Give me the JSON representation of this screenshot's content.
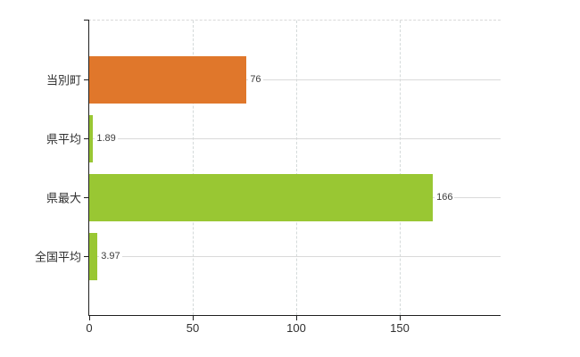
{
  "chart_data": {
    "type": "bar",
    "orientation": "horizontal",
    "title": "",
    "xlabel": "",
    "ylabel": "",
    "categories": [
      "当別町",
      "県平均",
      "県最大",
      "全国平均"
    ],
    "values": [
      76,
      1.89,
      166,
      3.97
    ],
    "value_labels": [
      "76",
      "1.89",
      "166",
      "3.97"
    ],
    "bar_colors": [
      "#e0772b",
      "#99c733",
      "#99c733",
      "#99c733"
    ],
    "x_ticks": [
      0,
      50,
      100,
      150
    ],
    "x_tick_labels": [
      "0",
      "50",
      "100",
      "150"
    ],
    "xlim": [
      0,
      198.7
    ],
    "grid": "dashed vertical gridlines at x ticks, solid horizontal line at each category center, dashed top frame",
    "legend_position": "none"
  },
  "colors": {
    "highlight_bar": "#e0772b",
    "comparison_bar": "#99c733",
    "axis_line": "#1f1f1f",
    "gridline": "#d9d9d9",
    "text": "#303030",
    "background": "#ffffff"
  }
}
